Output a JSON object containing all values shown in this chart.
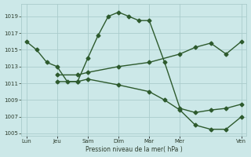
{
  "background_color": "#cce8e8",
  "grid_color": "#aacccc",
  "line_color": "#2d5a2d",
  "marker_color": "#2d5a2d",
  "xlabel": "Pression niveau de la mer( hPa )",
  "ylim": [
    1005,
    1020
  ],
  "yticks": [
    1005,
    1007,
    1009,
    1011,
    1013,
    1015,
    1017,
    1019
  ],
  "x_labels": [
    "Lun",
    "Jeu",
    "Sam",
    "Dim",
    "Mar",
    "Mer",
    "Ven"
  ],
  "x_positions": [
    0,
    12,
    24,
    36,
    48,
    60,
    84
  ],
  "x_max": 84,
  "series1_x": [
    0,
    4,
    8,
    12,
    16,
    20,
    24,
    28,
    32,
    36,
    40,
    44,
    48,
    54,
    60,
    66,
    72,
    78,
    84
  ],
  "series1_y": [
    1016.0,
    1015.0,
    1013.5,
    1013.0,
    1011.2,
    1011.2,
    1014.0,
    1016.7,
    1019.0,
    1019.5,
    1019.0,
    1018.5,
    1018.5,
    1013.5,
    1008.0,
    1007.5,
    1007.8,
    1008.0,
    1008.5
  ],
  "series2_x": [
    12,
    20,
    24,
    36,
    48,
    60,
    66,
    72,
    78,
    84
  ],
  "series2_y": [
    1012.0,
    1012.0,
    1012.3,
    1013.0,
    1013.5,
    1014.5,
    1015.3,
    1015.8,
    1014.5,
    1016.0
  ],
  "series3_x": [
    12,
    20,
    24,
    36,
    48,
    54,
    60,
    66,
    72,
    78,
    84
  ],
  "series3_y": [
    1011.2,
    1011.2,
    1011.5,
    1010.8,
    1010.0,
    1009.0,
    1007.8,
    1006.0,
    1005.5,
    1005.5,
    1007.0
  ]
}
